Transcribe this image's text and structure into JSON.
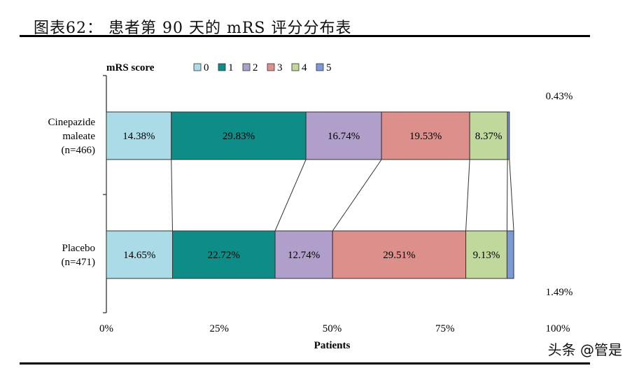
{
  "header": {
    "title": "图表62：  患者第 90 天的 mRS 评分分布表"
  },
  "watermark": "头条 @管是",
  "colors": {
    "0": "#aadbe6",
    "1": "#0d8c88",
    "2": "#b19fcb",
    "3": "#dd8f8b",
    "4": "#c1d89c",
    "5": "#7a9ad6"
  },
  "chart_data": {
    "type": "bar",
    "orientation": "horizontal",
    "stacked": "percent",
    "legend_title": "mRS score",
    "legend_position": "top-left",
    "categories": [
      {
        "lines": [
          "Cinepazide",
          "maleate",
          "(n=466)"
        ]
      },
      {
        "lines": [
          "Placebo",
          "(n=471)"
        ]
      }
    ],
    "series": [
      {
        "name": "0",
        "values": [
          14.38,
          14.65
        ]
      },
      {
        "name": "1",
        "values": [
          29.83,
          22.72
        ]
      },
      {
        "name": "2",
        "values": [
          16.74,
          12.74
        ]
      },
      {
        "name": "3",
        "values": [
          19.53,
          29.51
        ]
      },
      {
        "name": "4",
        "values": [
          8.37,
          9.13
        ]
      },
      {
        "name": "5",
        "values": [
          0.43,
          1.49
        ]
      }
    ],
    "xlabel": "Patients",
    "xlim": [
      0,
      100
    ],
    "xticks": [
      "0%",
      "25%",
      "50%",
      "75%",
      "100%"
    ],
    "grid": false,
    "connector_lines": true
  }
}
